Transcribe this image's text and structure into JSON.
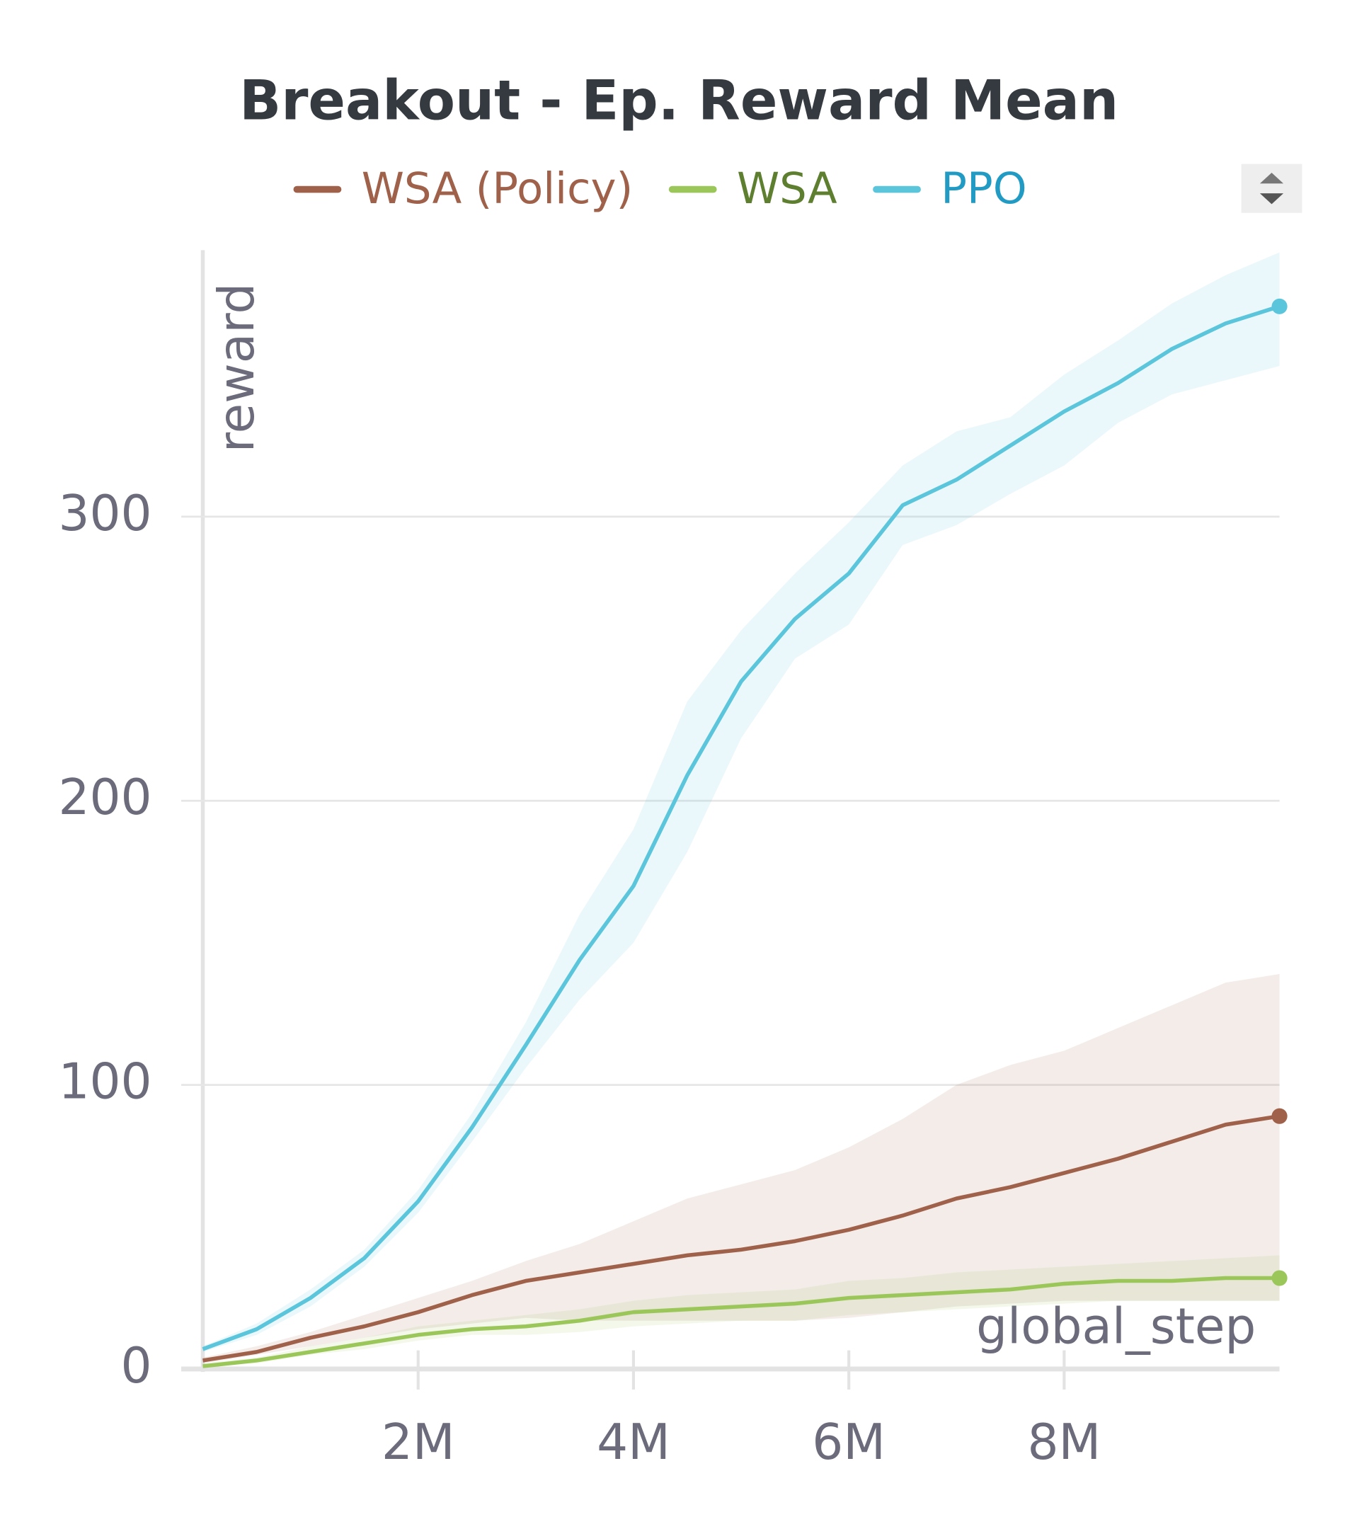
{
  "chart_data": {
    "type": "line",
    "title": "Breakout - Ep. Reward Mean",
    "x_label": "global_step",
    "y_label": "reward",
    "x": [
      0,
      500000,
      1000000,
      1500000,
      2000000,
      2500000,
      3000000,
      3500000,
      4000000,
      4500000,
      5000000,
      5500000,
      6000000,
      6500000,
      7000000,
      7500000,
      8000000,
      8500000,
      9000000,
      9500000,
      10000000
    ],
    "xlim": [
      0,
      10000000
    ],
    "xticks": [
      {
        "value": 2000000,
        "label": "2M"
      },
      {
        "value": 4000000,
        "label": "4M"
      },
      {
        "value": 6000000,
        "label": "6M"
      },
      {
        "value": 8000000,
        "label": "8M"
      }
    ],
    "ylim": [
      0,
      394
    ],
    "yticks": [
      0,
      100,
      200,
      300
    ],
    "grid": true,
    "series": [
      {
        "name": "WSA (Policy)",
        "color": "#a0614a",
        "label_color": "#a0614a",
        "values": [
          3,
          6,
          11,
          15,
          20,
          26,
          31,
          34,
          37,
          40,
          42,
          45,
          49,
          54,
          60,
          64,
          69,
          74,
          80,
          86,
          89
        ],
        "lower": [
          2,
          5,
          8,
          11,
          14,
          16,
          18,
          17,
          17,
          17,
          17,
          17,
          18,
          20,
          22,
          23,
          24,
          24,
          24,
          24,
          24
        ],
        "upper": [
          4,
          8,
          13,
          19,
          25,
          31,
          38,
          44,
          52,
          60,
          65,
          70,
          78,
          88,
          100,
          107,
          112,
          120,
          128,
          136,
          139
        ]
      },
      {
        "name": "WSA",
        "color": "#9bc75a",
        "label_color": "#5e7f2f",
        "values": [
          1,
          3,
          6,
          9,
          12,
          14,
          15,
          17,
          20,
          21,
          22,
          23,
          25,
          26,
          27,
          28,
          30,
          31,
          31,
          32,
          32
        ],
        "lower": [
          1,
          2,
          5,
          7,
          10,
          12,
          12,
          13,
          15,
          16,
          17,
          17,
          19,
          20,
          21,
          22,
          23,
          24,
          24,
          24,
          24
        ],
        "upper": [
          2,
          4,
          8,
          11,
          15,
          17,
          19,
          21,
          24,
          26,
          27,
          28,
          31,
          32,
          34,
          35,
          36,
          37,
          38,
          39,
          40
        ]
      },
      {
        "name": "PPO",
        "color": "#5bc5db",
        "label_color": "#229bc4",
        "values": [
          7,
          14,
          25,
          39,
          59,
          85,
          114,
          144,
          170,
          209,
          242,
          264,
          280,
          304,
          313,
          325,
          337,
          347,
          359,
          368,
          374
        ],
        "lower": [
          6,
          12,
          22,
          36,
          55,
          80,
          106,
          130,
          150,
          182,
          222,
          250,
          262,
          290,
          297,
          308,
          318,
          333,
          343,
          348,
          353
        ],
        "upper": [
          8,
          16,
          28,
          42,
          63,
          90,
          122,
          160,
          190,
          235,
          260,
          280,
          298,
          318,
          330,
          335,
          350,
          362,
          375,
          385,
          393
        ]
      }
    ]
  }
}
